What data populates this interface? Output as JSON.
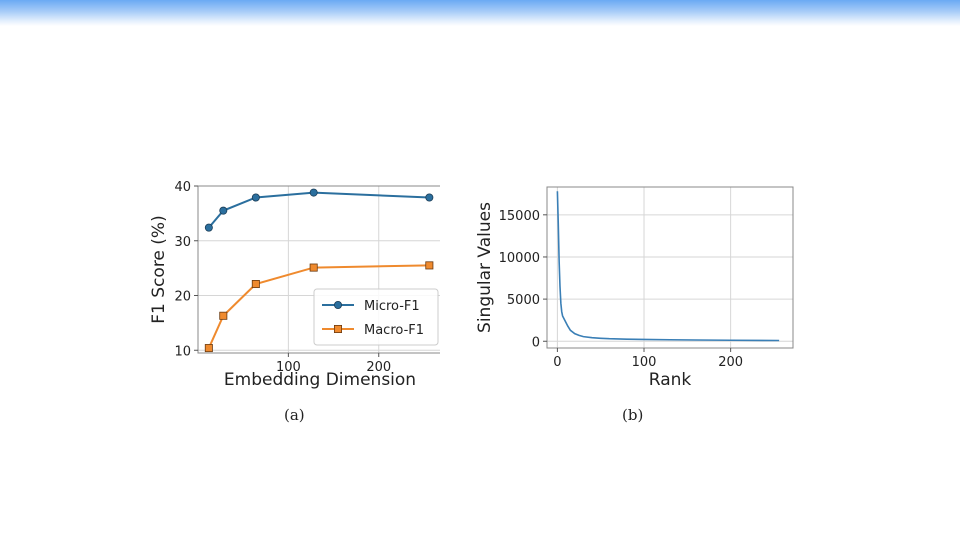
{
  "chart_data": [
    {
      "type": "line",
      "caption": "(a)",
      "xlabel": "Embedding Dimension",
      "ylabel": "F1 Score (%)",
      "xlim": [
        0,
        270
      ],
      "ylim": [
        9.5,
        40
      ],
      "xticks": [
        100,
        200
      ],
      "yticks": [
        10,
        20,
        30,
        40
      ],
      "grid": true,
      "legend_position": "center-right",
      "series": [
        {
          "name": "Micro-F1",
          "color": "#2b6f9e",
          "marker": "circle",
          "x": [
            12,
            28,
            64,
            128,
            256
          ],
          "y": [
            32.4,
            35.5,
            37.9,
            38.8,
            37.9
          ]
        },
        {
          "name": "Macro-F1",
          "color": "#ef8a2e",
          "marker": "square",
          "x": [
            12,
            28,
            64,
            128,
            256
          ],
          "y": [
            10.4,
            16.3,
            22.1,
            25.1,
            25.5
          ]
        }
      ]
    },
    {
      "type": "line",
      "caption": "(b)",
      "xlabel": "Rank",
      "ylabel": "Singular Values",
      "xlim": [
        -12,
        272
      ],
      "ylim": [
        -800,
        18300
      ],
      "xticks": [
        0,
        100,
        200
      ],
      "yticks": [
        0,
        5000,
        10000,
        15000
      ],
      "grid": true,
      "series": [
        {
          "color": "#3a7fb6",
          "x": [
            0,
            1,
            2,
            3,
            4,
            5,
            6,
            8,
            10,
            12,
            15,
            20,
            25,
            30,
            40,
            50,
            60,
            80,
            100,
            130,
            160,
            200,
            256
          ],
          "y": [
            17800,
            14000,
            9500,
            6500,
            4500,
            3500,
            3000,
            2600,
            2200,
            1800,
            1300,
            900,
            700,
            550,
            420,
            350,
            300,
            250,
            220,
            180,
            150,
            120,
            90
          ]
        }
      ]
    }
  ]
}
